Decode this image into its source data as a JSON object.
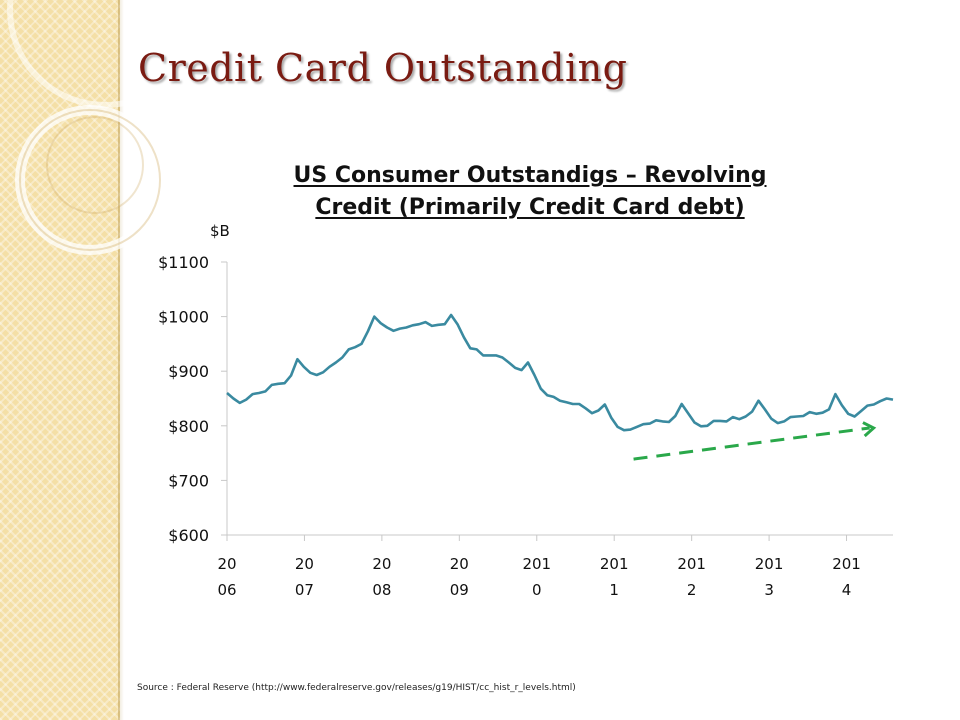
{
  "slide": {
    "title": "Credit Card Outstanding",
    "source": "Source : Federal Reserve (http://www.federalreserve.gov/releases/g19/HIST/cc_hist_r_levels.html)"
  },
  "colors": {
    "title": "#7a1b12",
    "line": "#3a8aa0",
    "trend": "#2aa84a",
    "sidebar": "#f4dfa6"
  },
  "chart_data": {
    "type": "line",
    "title_lines": [
      "US Consumer Outstandigs – Revolving",
      "Credit (Primarily Credit Card debt)"
    ],
    "ylabel": "$B",
    "ylim": [
      600,
      1100
    ],
    "yticks": [
      600,
      700,
      800,
      900,
      1000,
      1100
    ],
    "ytick_labels": [
      "$600",
      "$700",
      "$800",
      "$900",
      "$1000",
      "$1100"
    ],
    "xlim": [
      2006.0,
      2014.6
    ],
    "xtick_values": [
      2006,
      2007,
      2008,
      2009,
      2010,
      2011,
      2012,
      2013,
      2014
    ],
    "xtick_labels": [
      [
        "20",
        "06"
      ],
      [
        "20",
        "07"
      ],
      [
        "20",
        "08"
      ],
      [
        "20",
        "09"
      ],
      [
        "201",
        "0"
      ],
      [
        "201",
        "1"
      ],
      [
        "201",
        "2"
      ],
      [
        "201",
        "3"
      ],
      [
        "201",
        "4"
      ]
    ],
    "grid": false,
    "series": [
      {
        "values": [
          860,
          850,
          842,
          848,
          858,
          860,
          863,
          875,
          877,
          878,
          892,
          922,
          908,
          897,
          893,
          898,
          908,
          916,
          925,
          940,
          944,
          950,
          973,
          1000,
          988,
          980,
          974,
          978,
          980,
          984,
          986,
          990,
          983,
          985,
          986,
          1003,
          986,
          962,
          942,
          940,
          929,
          929,
          929,
          925,
          916,
          906,
          902,
          916,
          893,
          868,
          856,
          853,
          846,
          843,
          840,
          840,
          832,
          823,
          828,
          839,
          815,
          798,
          792,
          793,
          798,
          803,
          804,
          810,
          808,
          807,
          818,
          840,
          823,
          806,
          799,
          800,
          809,
          809,
          808,
          816,
          812,
          817,
          826,
          846,
          830,
          813,
          805,
          808,
          816,
          817,
          818,
          825,
          822,
          824,
          830,
          858,
          838,
          822,
          817,
          827,
          837,
          839,
          845,
          850,
          848
        ]
      }
    ],
    "trend_line": {
      "x": [
        2011.25,
        2014.35
      ],
      "y": [
        739,
        796
      ]
    }
  }
}
